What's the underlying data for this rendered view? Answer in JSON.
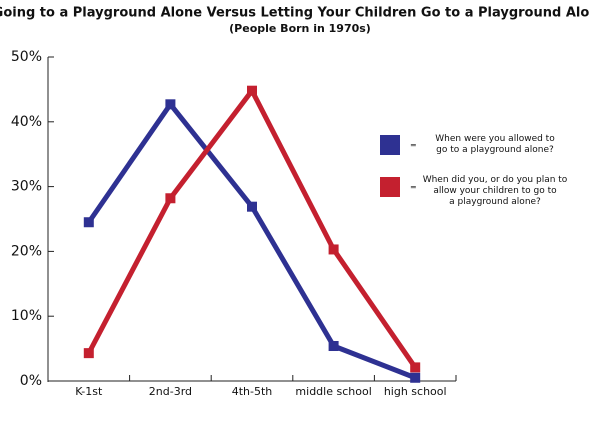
{
  "chart_data": {
    "type": "line",
    "title": "Going to a Playground Alone Versus Letting Your Children Go to a Playground Alone",
    "subtitle": "(People Born in 1970s)",
    "categories": [
      "K-1st",
      "2nd-3rd",
      "4th-5th",
      "middle school",
      "high school"
    ],
    "series": [
      {
        "name": "When were you allowed to\ngo to a playground alone?",
        "color": "#2e3192",
        "values": [
          24.5,
          42.7,
          26.9,
          5.4,
          0.5
        ]
      },
      {
        "name": "When did you, or do you plan to\nallow your children to go to\na playground alone?",
        "color": "#c4202f",
        "values": [
          4.3,
          28.2,
          44.8,
          20.3,
          2.1
        ]
      }
    ],
    "legend_separator": "=",
    "ylim": [
      0,
      50
    ],
    "yticks": [
      {
        "value": 0,
        "label": "0%"
      },
      {
        "value": 10,
        "label": "10%"
      },
      {
        "value": 20,
        "label": "20%"
      },
      {
        "value": 30,
        "label": "30%"
      },
      {
        "value": 40,
        "label": "40%"
      },
      {
        "value": 50,
        "label": "50%"
      }
    ],
    "grid": false
  }
}
